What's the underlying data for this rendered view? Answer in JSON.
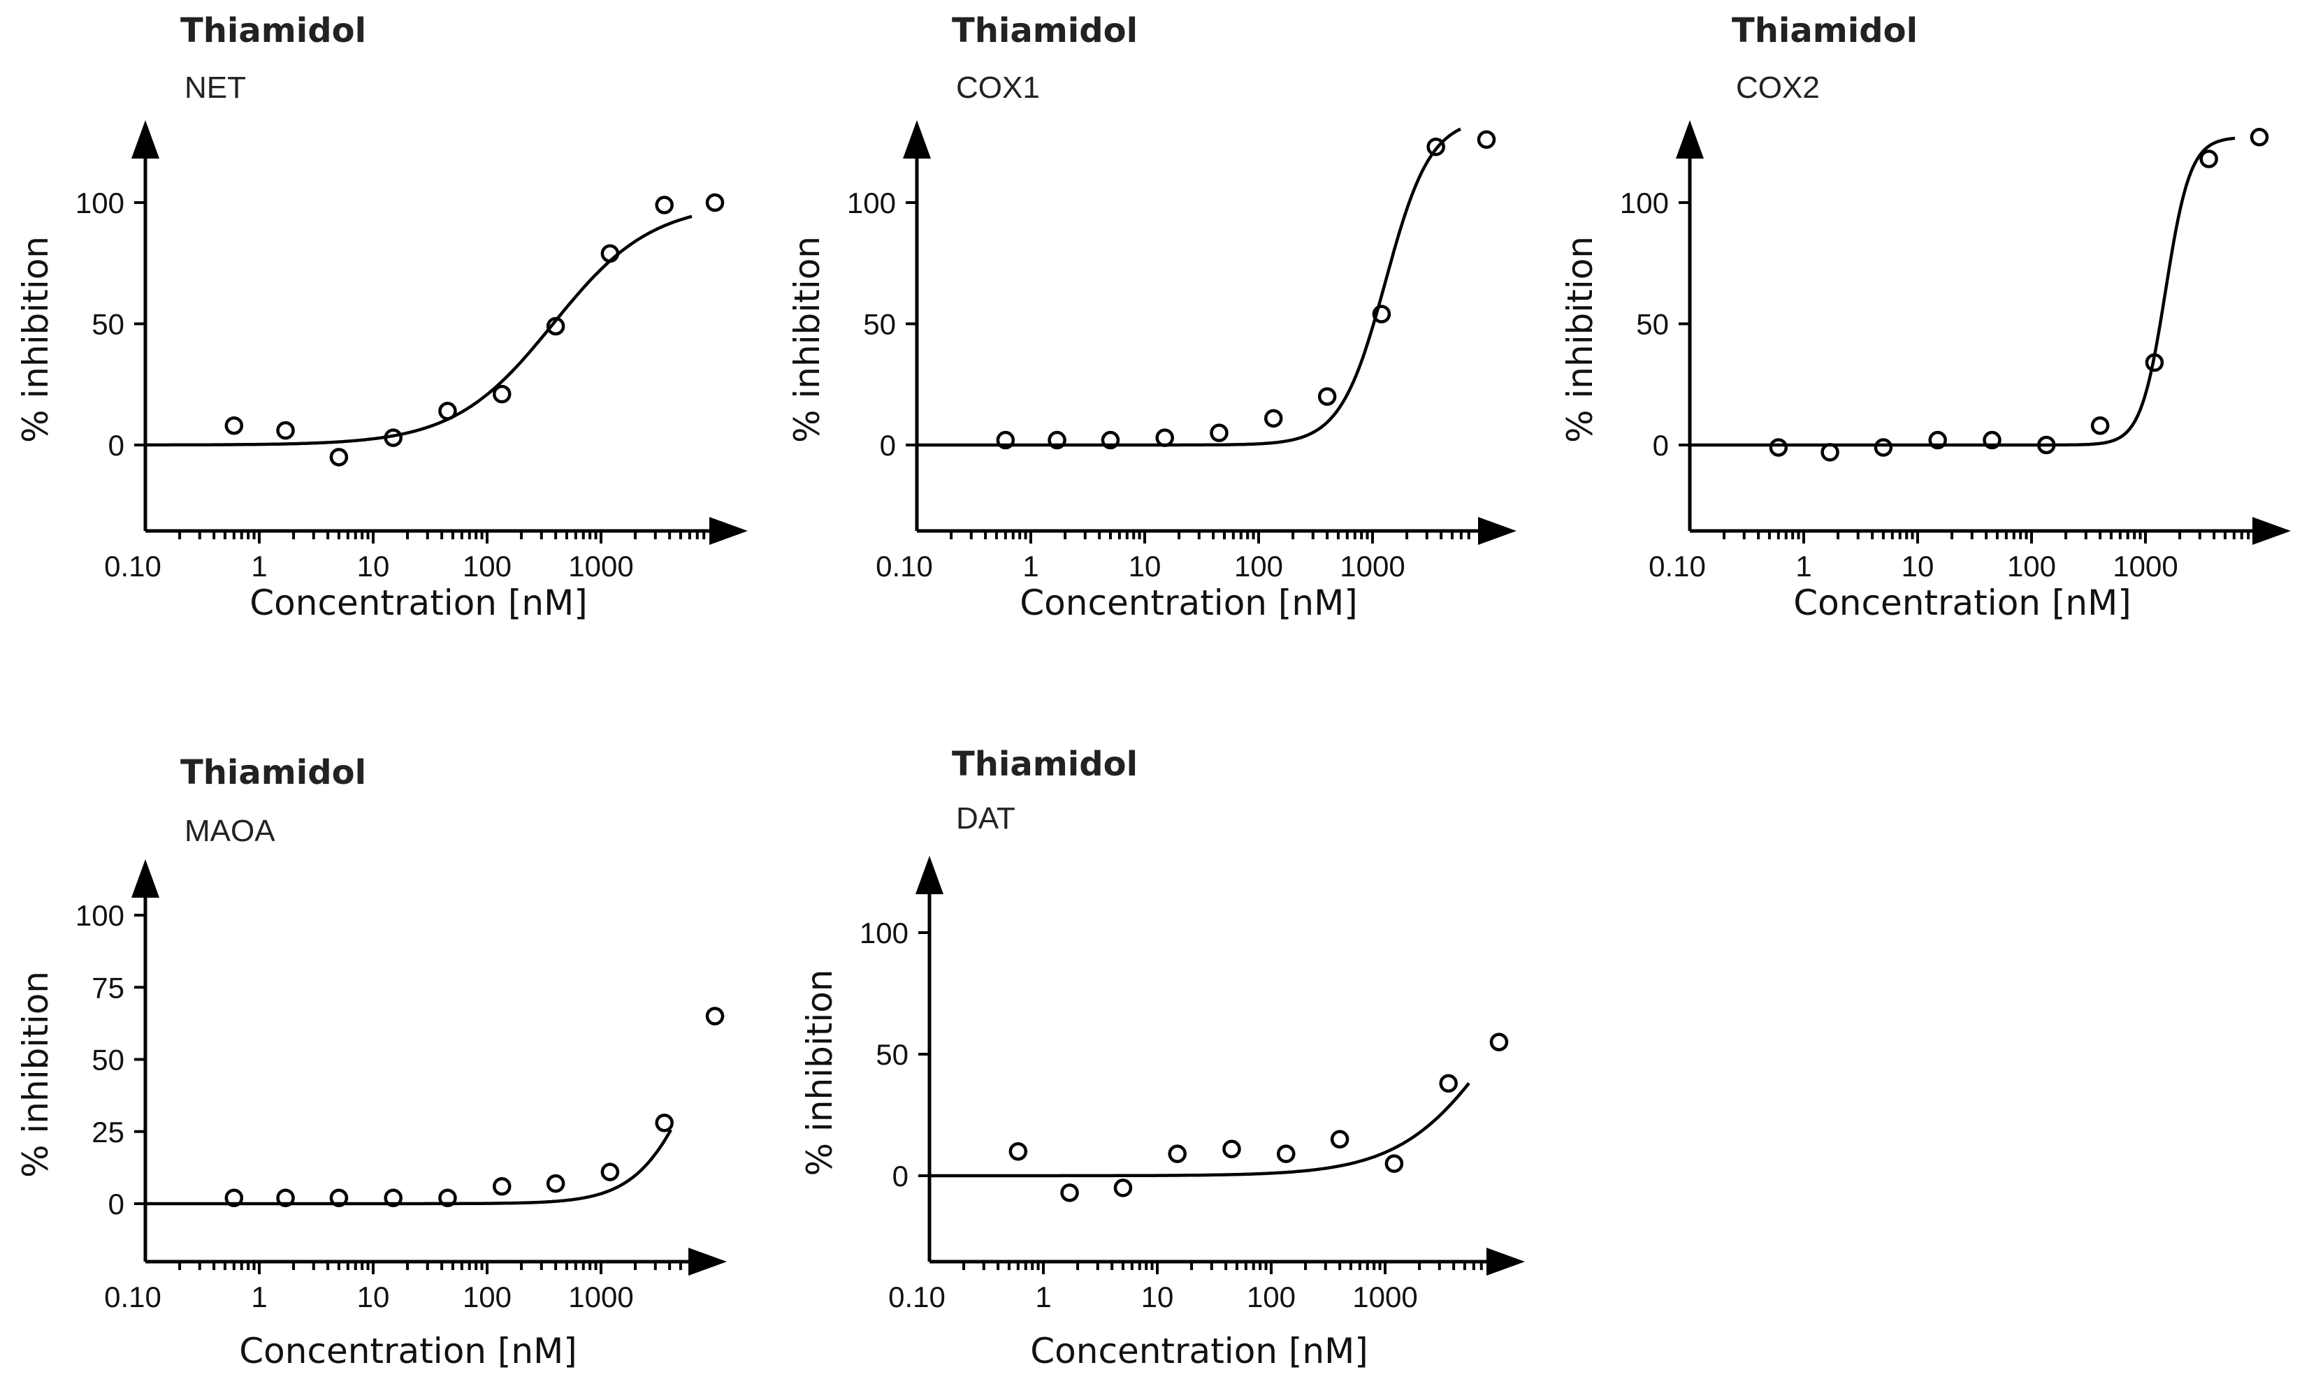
{
  "chart_data": [
    {
      "type": "scatter",
      "title": "Thiamidol",
      "subtitle": "NET",
      "xlabel": "Concentration [nM]",
      "ylabel": "% inhibition",
      "x_scale": "log",
      "x_ticks": [
        "0.10",
        "1",
        "10",
        "100",
        "1000"
      ],
      "y_ticks": [
        0,
        50,
        100
      ],
      "ylim": [
        -35,
        130
      ],
      "grid": false,
      "points": {
        "x": [
          0.6,
          1.7,
          5,
          15,
          45,
          135,
          400,
          1200,
          3600,
          10000
        ],
        "y": [
          8,
          6,
          -5,
          3,
          14,
          21,
          49,
          79,
          99,
          100
        ]
      },
      "fit": {
        "ic50": 380,
        "hill": 1.0,
        "bottom": 0,
        "top": 100
      }
    },
    {
      "type": "scatter",
      "title": "Thiamidol",
      "subtitle": "COX1",
      "xlabel": "Concentration [nM]",
      "ylabel": "% inhibition",
      "x_scale": "log",
      "x_ticks": [
        "0.10",
        "1",
        "10",
        "100",
        "1000"
      ],
      "y_ticks": [
        0,
        50,
        100
      ],
      "ylim": [
        -35,
        135
      ],
      "grid": false,
      "points": {
        "x": [
          0.6,
          1.7,
          5,
          15,
          45,
          135,
          400,
          1200,
          3600,
          10000
        ],
        "y": [
          2,
          2,
          2,
          3,
          5,
          11,
          20,
          54,
          123,
          126
        ]
      },
      "fit": {
        "ic50": 1300,
        "hill": 2.2,
        "bottom": 0,
        "top": 135
      }
    },
    {
      "type": "scatter",
      "title": "Thiamidol",
      "subtitle": "COX2",
      "xlabel": "Concentration [nM]",
      "ylabel": "% inhibition",
      "x_scale": "log",
      "x_ticks": [
        "0.10",
        "1",
        "10",
        "100",
        "1000"
      ],
      "y_ticks": [
        0,
        50,
        100
      ],
      "ylim": [
        -35,
        135
      ],
      "grid": false,
      "points": {
        "x": [
          0.6,
          1.7,
          5,
          15,
          45,
          135,
          400,
          1200,
          3600,
          10000
        ],
        "y": [
          -1,
          -3,
          -1,
          2,
          2,
          0,
          8,
          34,
          118,
          127
        ]
      },
      "fit": {
        "ic50": 1500,
        "hill": 4.0,
        "bottom": 0,
        "top": 127
      }
    },
    {
      "type": "scatter",
      "title": "Thiamidol",
      "subtitle": "MAOA",
      "xlabel": "Concentration [nM]",
      "ylabel": "% inhibition",
      "x_scale": "log",
      "x_ticks": [
        "0.10",
        "1",
        "10",
        "100",
        "1000"
      ],
      "y_ticks": [
        0,
        25,
        50,
        75,
        100
      ],
      "ylim": [
        -20,
        118
      ],
      "grid": false,
      "points": {
        "x": [
          0.6,
          1.7,
          5,
          15,
          45,
          135,
          400,
          1200,
          3600,
          10000
        ],
        "y": [
          2,
          2,
          2,
          2,
          2,
          6,
          7,
          11,
          28,
          65
        ]
      },
      "fit": {
        "ic50": 8000,
        "hill": 1.6,
        "bottom": 0,
        "top": 100
      }
    },
    {
      "type": "scatter",
      "title": "Thiamidol",
      "subtitle": "DAT",
      "xlabel": "Concentration [nM]",
      "ylabel": "% inhibition",
      "x_scale": "log",
      "x_ticks": [
        "0.10",
        "1",
        "10",
        "100",
        "1000"
      ],
      "y_ticks": [
        0,
        50,
        100
      ],
      "ylim": [
        -35,
        130
      ],
      "grid": false,
      "points": {
        "x": [
          0.6,
          1.7,
          5,
          15,
          45,
          135,
          400,
          1200,
          3600,
          10000
        ],
        "y": [
          10,
          -7,
          -5,
          9,
          11,
          9,
          15,
          5,
          38,
          55
        ]
      },
      "fit": {
        "ic50": 11000,
        "hill": 1.0,
        "bottom": 0,
        "top": 115
      }
    }
  ]
}
